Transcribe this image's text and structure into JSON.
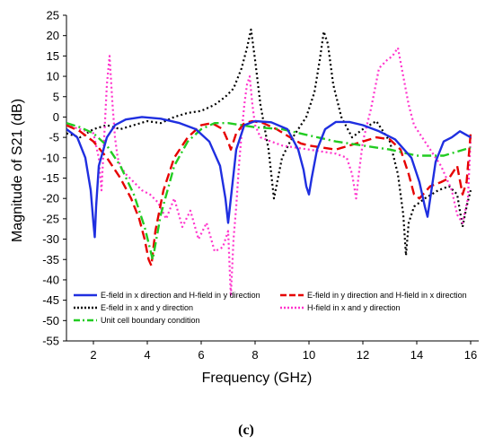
{
  "figure": {
    "panel_label": "(c)"
  },
  "chart_data": {
    "type": "line",
    "title": "",
    "xlabel": "Frequency (GHz)",
    "ylabel": "Magnitude of S21 (dB)",
    "xlim": [
      1,
      16.3
    ],
    "ylim": [
      -55,
      25
    ],
    "xticks": [
      2,
      4,
      6,
      8,
      10,
      12,
      14,
      16
    ],
    "yticks": [
      25,
      20,
      15,
      10,
      5,
      0,
      -5,
      -10,
      -15,
      -20,
      -25,
      -30,
      -35,
      -40,
      -45,
      -50,
      -55
    ],
    "grid": false,
    "legend_position": "lower-center",
    "series": [
      {
        "name": "E-field in x direction and H-field in y direction",
        "color": "#1f2fe0",
        "dash": "solid",
        "x": [
          1,
          1.4,
          1.7,
          1.9,
          2.0,
          2.05,
          2.1,
          2.2,
          2.5,
          2.8,
          3.2,
          3.8,
          4.5,
          5.2,
          5.8,
          6.3,
          6.7,
          6.9,
          7.0,
          7.1,
          7.3,
          7.6,
          8.0,
          8.6,
          9.2,
          9.6,
          9.8,
          9.9,
          10.0,
          10.1,
          10.3,
          10.6,
          11.0,
          11.5,
          12.0,
          12.6,
          13.2,
          13.8,
          14.1,
          14.3,
          14.4,
          14.5,
          14.7,
          15.0,
          15.3,
          15.6,
          16.0
        ],
        "y": [
          -3,
          -5,
          -10,
          -18,
          -26,
          -29.5,
          -22,
          -12,
          -5,
          -2,
          -0.6,
          0,
          -0.4,
          -1.5,
          -3,
          -6,
          -12,
          -20,
          -26,
          -20,
          -8,
          -2,
          -1,
          -1.3,
          -3,
          -8,
          -13,
          -17,
          -19,
          -15,
          -8,
          -3,
          -1.2,
          -1.2,
          -2,
          -3.5,
          -5.5,
          -10,
          -16,
          -22,
          -24.5,
          -20,
          -11,
          -6,
          -5,
          -3.5,
          -5
        ]
      },
      {
        "name": "E-field in y direction and H-field in x direction",
        "color": "#e60000",
        "dash": "dashed",
        "x": [
          1,
          1.5,
          2.0,
          2.5,
          3.0,
          3.4,
          3.7,
          3.9,
          4.05,
          4.15,
          4.3,
          4.6,
          5.0,
          5.5,
          6.0,
          6.4,
          6.8,
          7.0,
          7.1,
          7.3,
          7.6,
          7.9,
          8.3,
          8.8,
          9.3,
          9.7,
          10.0,
          10.5,
          11.0,
          11.5,
          12.0,
          12.5,
          13.0,
          13.4,
          13.7,
          13.9,
          14.1,
          14.5,
          14.9,
          15.2,
          15.5,
          15.7,
          15.85,
          16.0
        ],
        "y": [
          -2,
          -3.5,
          -6,
          -10,
          -15,
          -20,
          -25,
          -30,
          -35,
          -36.5,
          -28,
          -18,
          -10,
          -5,
          -2,
          -1.5,
          -3,
          -6,
          -8,
          -4,
          -1.5,
          -1,
          -1.5,
          -3,
          -5,
          -6.5,
          -7,
          -7.5,
          -8,
          -7,
          -6,
          -5,
          -5.5,
          -8,
          -14,
          -19,
          -20,
          -17,
          -16,
          -15,
          -12,
          -19,
          -16,
          -4
        ]
      },
      {
        "name": "E-field in x and y direction",
        "color": "#000000",
        "dash": "dotted",
        "x": [
          1,
          1.5,
          2.0,
          2.5,
          3.0,
          3.5,
          4.0,
          4.5,
          5.0,
          5.5,
          6.0,
          6.5,
          6.9,
          7.2,
          7.5,
          7.7,
          7.85,
          8.0,
          8.2,
          8.5,
          8.7,
          8.85,
          9.0,
          9.3,
          9.6,
          9.9,
          10.2,
          10.4,
          10.55,
          10.7,
          10.9,
          11.2,
          11.6,
          12.0,
          12.5,
          13.0,
          13.3,
          13.5,
          13.6,
          13.7,
          13.9,
          14.3,
          14.8,
          15.2,
          15.5,
          15.7,
          15.85,
          16.0
        ],
        "y": [
          -4,
          -5,
          -3,
          -2,
          -3,
          -2,
          -1,
          -1.5,
          0,
          1,
          1.5,
          3,
          5,
          7,
          12,
          17,
          21.5,
          14,
          3,
          -8,
          -20,
          -15,
          -10,
          -6,
          -3,
          0,
          6,
          14,
          21,
          18,
          8,
          0,
          -5,
          -3,
          -1,
          -6,
          -14,
          -24,
          -34,
          -26,
          -22,
          -20,
          -18,
          -17,
          -19,
          -27,
          -22,
          -18
        ]
      },
      {
        "name": "H-field in x and y direction",
        "color": "#ff33cc",
        "dash": "dotted",
        "x": [
          1,
          1.5,
          2.0,
          2.2,
          2.3,
          2.4,
          2.5,
          2.6,
          2.7,
          2.8,
          2.9,
          3.0,
          3.2,
          3.5,
          3.8,
          4.1,
          4.4,
          4.7,
          5.0,
          5.3,
          5.6,
          5.9,
          6.2,
          6.5,
          6.8,
          7.0,
          7.1,
          7.2,
          7.3,
          7.4,
          7.5,
          7.6,
          7.7,
          7.8,
          7.9,
          8.0,
          8.2,
          8.6,
          9.0,
          9.5,
          10.0,
          10.5,
          11.0,
          11.4,
          11.6,
          11.75,
          11.85,
          12.0,
          12.3,
          12.6,
          12.9,
          13.1,
          13.3,
          13.5,
          13.7,
          13.9,
          14.1,
          14.3,
          14.5,
          14.7,
          14.9,
          15.1,
          15.3,
          15.5,
          15.7,
          15.9,
          16.0
        ],
        "y": [
          -2,
          -3,
          -4,
          -10,
          -18,
          -5,
          8,
          15,
          4,
          -5,
          -10,
          -12,
          -14,
          -16,
          -18,
          -19,
          -21,
          -25,
          -20,
          -27,
          -23,
          -30,
          -26,
          -33,
          -32,
          -28,
          -44,
          -30,
          -22,
          -12,
          -4,
          3,
          8,
          10,
          3,
          -2,
          -5,
          -6,
          -7,
          -7.5,
          -8,
          -8.5,
          -9,
          -10,
          -14,
          -20,
          -14,
          -6,
          2,
          12,
          14,
          15,
          17,
          10,
          3,
          -2,
          -4,
          -6,
          -8,
          -10,
          -12,
          -15,
          -18,
          -24,
          -26,
          -20,
          -5
        ]
      },
      {
        "name": "Unit cell boundary condition",
        "color": "#22cc22",
        "dash": "dashdot",
        "x": [
          1,
          1.5,
          2.0,
          2.5,
          3.0,
          3.5,
          3.9,
          4.2,
          4.5,
          5.0,
          5.5,
          6.0,
          6.5,
          7.0,
          7.5,
          8.0,
          9.0,
          10.0,
          11.0,
          12.0,
          13.0,
          14.0,
          15.0,
          15.5,
          16.0
        ],
        "y": [
          -1.5,
          -2.5,
          -4,
          -7,
          -12,
          -19,
          -27,
          -35,
          -24,
          -12,
          -6,
          -3,
          -1.5,
          -1.5,
          -2,
          -2.5,
          -3,
          -4.5,
          -6,
          -7,
          -8,
          -9.5,
          -9.5,
          -8.5,
          -7.5
        ]
      }
    ]
  }
}
